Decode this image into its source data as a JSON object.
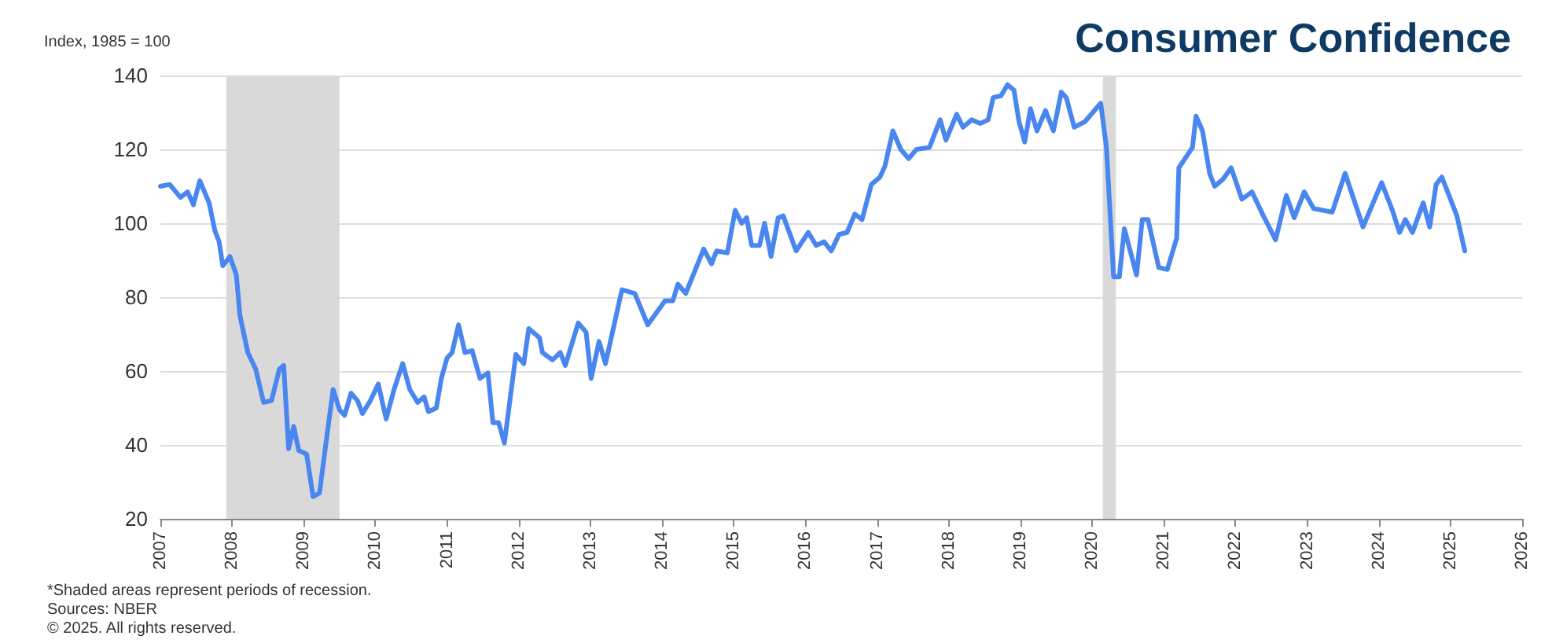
{
  "chart_data": {
    "type": "line",
    "title": "Consumer Confidence",
    "ylabel": "Index, 1985 = 100",
    "annotations": [
      "*Shaded areas represent periods of recession.",
      "Sources: NBER",
      "© 2025. All rights reserved."
    ],
    "xlim": [
      2007,
      2026
    ],
    "xticks": [
      2007,
      2008,
      2009,
      2010,
      2011,
      2012,
      2013,
      2014,
      2015,
      2016,
      2017,
      2018,
      2019,
      2020,
      2021,
      2022,
      2023,
      2024,
      2025,
      2026
    ],
    "ylim": [
      20,
      140
    ],
    "yticks": [
      20,
      40,
      60,
      80,
      100,
      120,
      140
    ],
    "grid": "y",
    "marker": "none",
    "line_style": "solid",
    "bands": [
      {
        "axis": "x",
        "from": 2007.92,
        "to": 2009.5,
        "color": "#d9d9d9"
      },
      {
        "axis": "x",
        "from": 2020.15,
        "to": 2020.33,
        "color": "#d9d9d9"
      }
    ],
    "series": [
      {
        "color": "#4a86f0",
        "x": [
          2007.0,
          2007.13,
          2007.28,
          2007.38,
          2007.46,
          2007.55,
          2007.68,
          2007.76,
          2007.82,
          2007.87,
          2007.97,
          2008.06,
          2008.11,
          2008.22,
          2008.33,
          2008.44,
          2008.55,
          2008.66,
          2008.72,
          2008.79,
          2008.86,
          2008.93,
          2009.04,
          2009.13,
          2009.22,
          2009.31,
          2009.41,
          2009.5,
          2009.57,
          2009.66,
          2009.75,
          2009.82,
          2009.93,
          2010.04,
          2010.15,
          2010.26,
          2010.38,
          2010.48,
          2010.59,
          2010.68,
          2010.74,
          2010.85,
          2010.92,
          2011.0,
          2011.07,
          2011.16,
          2011.25,
          2011.35,
          2011.46,
          2011.57,
          2011.64,
          2011.72,
          2011.8,
          2011.89,
          2011.96,
          2012.07,
          2012.14,
          2012.29,
          2012.33,
          2012.47,
          2012.58,
          2012.65,
          2012.83,
          2012.94,
          2013.01,
          2013.12,
          2013.21,
          2013.44,
          2013.62,
          2013.8,
          2014.04,
          2014.15,
          2014.22,
          2014.33,
          2014.58,
          2014.69,
          2014.76,
          2014.91,
          2015.02,
          2015.11,
          2015.18,
          2015.25,
          2015.36,
          2015.43,
          2015.52,
          2015.62,
          2015.69,
          2015.87,
          2016.04,
          2016.15,
          2016.26,
          2016.36,
          2016.47,
          2016.58,
          2016.69,
          2016.79,
          2016.92,
          2017.04,
          2017.11,
          2017.22,
          2017.33,
          2017.44,
          2017.55,
          2017.73,
          2017.88,
          2017.96,
          2018.11,
          2018.2,
          2018.32,
          2018.44,
          2018.55,
          2018.62,
          2018.73,
          2018.82,
          2018.91,
          2018.98,
          2019.06,
          2019.14,
          2019.23,
          2019.35,
          2019.46,
          2019.57,
          2019.64,
          2019.75,
          2019.9,
          2020.12,
          2020.2,
          2020.3,
          2020.38,
          2020.45,
          2020.62,
          2020.7,
          2020.78,
          2020.93,
          2021.05,
          2021.18,
          2021.21,
          2021.4,
          2021.45,
          2021.54,
          2021.64,
          2021.71,
          2021.83,
          2021.94,
          2022.09,
          2022.23,
          2022.39,
          2022.56,
          2022.71,
          2022.82,
          2022.96,
          2023.09,
          2023.35,
          2023.53,
          2023.78,
          2024.04,
          2024.19,
          2024.29,
          2024.37,
          2024.47,
          2024.62,
          2024.71,
          2024.8,
          2024.88,
          2024.98,
          2025.09,
          2025.2
        ],
        "values": [
          110,
          110.5,
          107,
          108.5,
          105,
          111.5,
          105.5,
          98,
          95,
          88.5,
          91,
          86,
          75,
          65,
          60.5,
          51.5,
          52,
          60.5,
          61.5,
          39,
          45,
          38.5,
          37.5,
          26,
          27,
          40.5,
          55,
          49.5,
          48,
          54,
          52,
          48.5,
          52,
          56.5,
          47,
          55,
          62,
          55,
          51.5,
          53,
          49,
          50,
          58,
          63.5,
          65,
          72.5,
          65,
          65.5,
          58,
          59.5,
          46,
          46,
          40.5,
          54,
          64.5,
          62,
          71.5,
          69,
          65,
          63,
          65,
          61.5,
          73,
          70.5,
          58,
          68,
          62,
          82,
          81,
          72.5,
          79,
          79,
          83.5,
          81,
          93,
          89,
          92.5,
          92,
          103.5,
          100,
          101.5,
          94,
          94,
          100,
          91,
          101.5,
          102,
          92.5,
          97.5,
          94,
          95,
          92.5,
          97,
          97.5,
          102.5,
          101,
          110.5,
          112.5,
          115.5,
          125,
          120,
          117.5,
          120,
          120.5,
          128,
          122.5,
          129.5,
          126,
          128,
          127,
          128,
          134,
          134.5,
          137.5,
          136,
          127.5,
          122,
          131,
          125,
          130.5,
          125,
          135.5,
          134,
          126,
          127.5,
          132.5,
          120.5,
          85.5,
          85.5,
          98.5,
          86,
          101,
          101,
          88,
          87.5,
          96,
          115,
          120.5,
          129,
          125,
          113.5,
          110,
          112,
          115,
          106.5,
          108.5,
          102,
          95.5,
          107.5,
          101.5,
          108.5,
          104,
          103,
          113.5,
          99,
          111,
          103.5,
          97.5,
          101,
          97.5,
          105.5,
          99,
          110.5,
          112.5,
          107.5,
          102,
          92.5
        ]
      }
    ]
  }
}
